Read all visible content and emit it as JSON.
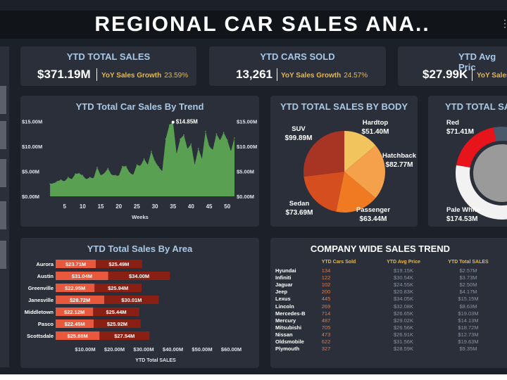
{
  "dashboard": {
    "title": "REGIONAL CAR SALES ANA..",
    "colors": {
      "background": "#1c2028",
      "card": "#2a2f3a",
      "title_blue": "#a8c8e6",
      "accent_gold": "#e8b84a",
      "area_green": "#5aa052"
    }
  },
  "kpis": [
    {
      "title": "YTD TOTAL SALES",
      "value": "$371.19M",
      "growth_label": "YoY Sales Growth",
      "growth_value": "23.59%"
    },
    {
      "title": "YTD CARS SOLD",
      "value": "13,261",
      "growth_label": "YoY Sales Growth",
      "growth_value": "24.57%"
    },
    {
      "title": "YTD Avg Pric",
      "value": "$27.99K",
      "growth_label": "YoY Sales G",
      "growth_value": ""
    }
  ],
  "trend_panel": {
    "title": "YTD Total Car Sales By Trend",
    "peak_label": "$14.85M",
    "x_axis_label": "Weeks"
  },
  "body_panel": {
    "title": "YTD TOTAL SALES BY BODY"
  },
  "color_panel": {
    "title": "YTD TOTAL SALE"
  },
  "area_panel": {
    "title": "YTD Total Sales By Area"
  },
  "table_panel": {
    "title": "COMPANY WIDE SALES TREND",
    "columns": [
      "YTD Cars Sold",
      "YTD Avg Price",
      "YTD Total SALES"
    ],
    "rows": [
      {
        "name": "Hyundai",
        "cars": "134",
        "price": "$19.15K",
        "sales": "$2.57M"
      },
      {
        "name": "Infiniti",
        "cars": "122",
        "price": "$30.54K",
        "sales": "$3.73M"
      },
      {
        "name": "Jaguar",
        "cars": "102",
        "price": "$24.55K",
        "sales": "$2.50M"
      },
      {
        "name": "Jeep",
        "cars": "200",
        "price": "$20.83K",
        "sales": "$4.17M"
      },
      {
        "name": "Lexus",
        "cars": "445",
        "price": "$34.05K",
        "sales": "$15.15M"
      },
      {
        "name": "Lincoln",
        "cars": "269",
        "price": "$32.08K",
        "sales": "$8.63M"
      },
      {
        "name": "Mercedes-B",
        "cars": "714",
        "price": "$26.65K",
        "sales": "$19.03M"
      },
      {
        "name": "Mercury",
        "cars": "487",
        "price": "$29.02K",
        "sales": "$14.13M"
      },
      {
        "name": "Mitsubishi",
        "cars": "705",
        "price": "$26.56K",
        "sales": "$18.72M"
      },
      {
        "name": "Nissan",
        "cars": "473",
        "price": "$26.91K",
        "sales": "$12.73M"
      },
      {
        "name": "Oldsmobile",
        "cars": "622",
        "price": "$31.56K",
        "sales": "$19.63M"
      },
      {
        "name": "Plymouth",
        "cars": "327",
        "price": "$28.59K",
        "sales": "$9.35M"
      }
    ]
  },
  "chart_data": [
    {
      "type": "area",
      "title": "YTD Total Car Sales By Trend",
      "xlabel": "Weeks",
      "ylabel": "",
      "x_ticks": [
        5,
        10,
        15,
        20,
        25,
        30,
        35,
        40,
        45,
        50
      ],
      "y_ticks": [
        "$0.00M",
        "$5.00M",
        "$10.00M",
        "$15.00M"
      ],
      "ylim": [
        0,
        15.5
      ],
      "xlim": [
        0,
        52
      ],
      "peak": {
        "x": 35,
        "y": 14.85,
        "label": "$14.85M"
      },
      "color": "#5aa052",
      "x": [
        1,
        2,
        3,
        4,
        5,
        6,
        7,
        8,
        9,
        10,
        11,
        12,
        13,
        14,
        15,
        16,
        17,
        18,
        19,
        20,
        21,
        22,
        23,
        24,
        25,
        26,
        27,
        28,
        29,
        30,
        31,
        32,
        33,
        34,
        35,
        36,
        37,
        38,
        39,
        40,
        41,
        42,
        43,
        44,
        45,
        46,
        47,
        48,
        49,
        50,
        51,
        52
      ],
      "values": [
        2.5,
        2.6,
        3.0,
        3.3,
        3.0,
        3.8,
        3.4,
        4.5,
        4.6,
        4.2,
        3.4,
        3.8,
        3.6,
        5.8,
        4.2,
        4.6,
        5.6,
        4.3,
        4.2,
        4.1,
        6.0,
        6.0,
        4.7,
        4.3,
        6.3,
        6.1,
        7.5,
        6.3,
        9.0,
        7.0,
        5.9,
        5.0,
        11.5,
        14.3,
        14.85,
        8.5,
        11.5,
        12.3,
        9.5,
        10.5,
        6.3,
        9.6,
        7.5,
        13.0,
        10.0,
        9.3,
        12.5,
        11.2,
        12.8,
        11.3,
        9.0,
        11.7
      ]
    },
    {
      "type": "pie",
      "title": "YTD TOTAL SALES BY BODY",
      "slices": [
        {
          "name": "Hardtop",
          "value": 51.4,
          "label": "$51.40M",
          "color": "#f2c45e"
        },
        {
          "name": "Hatchback",
          "value": 82.77,
          "label": "$82.77M",
          "color": "#f5a04a"
        },
        {
          "name": "Passenger",
          "value": 63.44,
          "label": "$63.44M",
          "color": "#f07a22"
        },
        {
          "name": "Sedan",
          "value": 73.69,
          "label": "$73.69M",
          "color": "#d44e20"
        },
        {
          "name": "SUV",
          "value": 99.89,
          "label": "$99.89M",
          "color": "#a83424"
        }
      ]
    },
    {
      "type": "pie",
      "title": "YTD TOTAL SALE",
      "slices": [
        {
          "name": "Red",
          "value": 71.41,
          "label": "$71.41M",
          "color": "#e8141c"
        },
        {
          "name": "Pale White",
          "value": 174.53,
          "label": "$174.53M",
          "color": "#f2f2f2"
        },
        {
          "name": "other",
          "value": 125.25,
          "label": "",
          "color": "#4a5a6a"
        }
      ]
    },
    {
      "type": "bar",
      "title": "YTD Total Sales By Area",
      "xlabel": "YTD Total SALES",
      "x_ticks": [
        "$10.00M",
        "$20.00M",
        "$30.00M",
        "$40.00M",
        "$50.00M",
        "$60.00M"
      ],
      "xlim": [
        0,
        65
      ],
      "categories": [
        "Aurora",
        "Austin",
        "Greenville",
        "Janesville",
        "Middletown",
        "Pasco",
        "Scottsdale"
      ],
      "series": [
        {
          "values": [
            23.71,
            31.04,
            22.95,
            28.72,
            22.12,
            22.45,
            25.88
          ],
          "labels": [
            "$23.71M",
            "$31.04M",
            "$22.95M",
            "$28.72M",
            "$22.12M",
            "$22.45M",
            "$25.88M"
          ],
          "color": "#e8583c"
        },
        {
          "values": [
            25.49,
            34.0,
            25.94,
            30.01,
            25.44,
            25.92,
            27.54
          ],
          "labels": [
            "$25.49M",
            "$34.00M",
            "$25.94M",
            "$30.01M",
            "$25.44M",
            "$25.92M",
            "$27.54M"
          ],
          "color": "#8a1f14"
        }
      ]
    }
  ]
}
